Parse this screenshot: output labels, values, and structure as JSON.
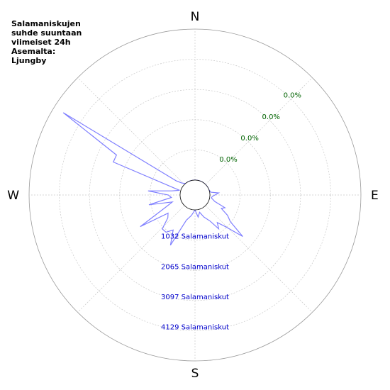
{
  "title_lines": [
    "Salamaniskujen",
    "suhde suuntaan",
    "viimeiset 24h",
    "Asemalta:",
    "Ljungby"
  ],
  "chart_data": {
    "type": "polar-line",
    "title": "Salamaniskujen suhde suuntaan viimeiset 24h Asemalta: Ljungby",
    "directions": [
      "N",
      "E",
      "S",
      "W"
    ],
    "radial_max": 5161,
    "inner_hole_fraction": 0.09,
    "count_rings": [
      {
        "value": 1032,
        "label": "1032 Salamaniskut"
      },
      {
        "value": 2065,
        "label": "2065 Salamaniskut"
      },
      {
        "value": 3097,
        "label": "3097 Salamaniskut"
      },
      {
        "value": 4129,
        "label": "4129 Salamaniskut"
      }
    ],
    "percent_labels": [
      "0.0%",
      "0.0%",
      "0.0%",
      "0.0%"
    ],
    "grid": true,
    "series": [
      {
        "color": "#8080ff",
        "points": [
          {
            "az": 0,
            "v": 0
          },
          {
            "az": 10,
            "v": 0
          },
          {
            "az": 20,
            "v": 0
          },
          {
            "az": 30,
            "v": 0
          },
          {
            "az": 40,
            "v": 0
          },
          {
            "az": 50,
            "v": 0
          },
          {
            "az": 60,
            "v": 0
          },
          {
            "az": 70,
            "v": 0
          },
          {
            "az": 80,
            "v": 40
          },
          {
            "az": 85,
            "v": 300
          },
          {
            "az": 95,
            "v": 80
          },
          {
            "az": 100,
            "v": 60
          },
          {
            "az": 108,
            "v": 200
          },
          {
            "az": 113,
            "v": 600
          },
          {
            "az": 117,
            "v": 500
          },
          {
            "az": 122,
            "v": 800
          },
          {
            "az": 127,
            "v": 1000
          },
          {
            "az": 131,
            "v": 1650
          },
          {
            "az": 136,
            "v": 1000
          },
          {
            "az": 141,
            "v": 700
          },
          {
            "az": 145,
            "v": 900
          },
          {
            "az": 150,
            "v": 520
          },
          {
            "az": 158,
            "v": 300
          },
          {
            "az": 165,
            "v": 100
          },
          {
            "az": 172,
            "v": 250
          },
          {
            "az": 180,
            "v": 0
          },
          {
            "az": 190,
            "v": 200
          },
          {
            "az": 199,
            "v": 400
          },
          {
            "az": 206,
            "v": 1400
          },
          {
            "az": 212,
            "v": 900
          },
          {
            "az": 218,
            "v": 1100
          },
          {
            "az": 224,
            "v": 1100
          },
          {
            "az": 230,
            "v": 700
          },
          {
            "az": 236,
            "v": 600
          },
          {
            "az": 240,
            "v": 1650
          },
          {
            "az": 247,
            "v": 600
          },
          {
            "az": 253,
            "v": 300
          },
          {
            "az": 258,
            "v": 1100
          },
          {
            "az": 264,
            "v": 300
          },
          {
            "az": 270,
            "v": 400
          },
          {
            "az": 275,
            "v": 1100
          },
          {
            "az": 280,
            "v": 300
          },
          {
            "az": 287,
            "v": 40
          },
          {
            "az": 292,
            "v": 2500
          },
          {
            "az": 297,
            "v": 2500
          },
          {
            "az": 302,
            "v": 4800
          },
          {
            "az": 307,
            "v": 300
          },
          {
            "az": 312,
            "v": 100
          },
          {
            "az": 320,
            "v": 0
          },
          {
            "az": 330,
            "v": 0
          },
          {
            "az": 340,
            "v": 0
          },
          {
            "az": 350,
            "v": 0
          }
        ]
      }
    ]
  }
}
